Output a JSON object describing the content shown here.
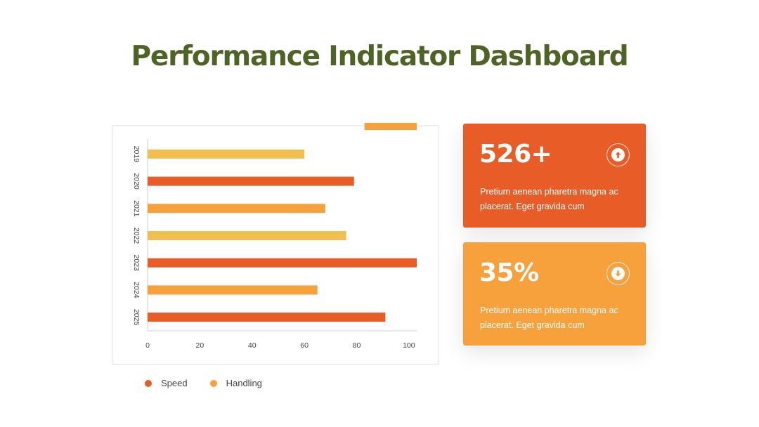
{
  "title": "Performance Indicator Dashboard",
  "colors": {
    "title": "#4e6427",
    "speed": "#e85d27",
    "handling": "#f7a13d",
    "yellow": "#f0bf4f"
  },
  "chart_data": {
    "type": "bar",
    "orientation": "horizontal",
    "categories": [
      "2019",
      "2020",
      "2021",
      "2022",
      "2023",
      "2024",
      "2025"
    ],
    "values": [
      60,
      79,
      68,
      76,
      103,
      65,
      91
    ],
    "bar_colors": [
      "#f0bf4f",
      "#e85d27",
      "#f7a13d",
      "#f0bf4f",
      "#e85d27",
      "#f7a13d",
      "#e85d27"
    ],
    "extra_bar": {
      "start": 83,
      "end": 103,
      "color": "#f7a13d"
    },
    "xlim": [
      0,
      103
    ],
    "xticks": [
      0,
      20,
      40,
      60,
      80,
      100
    ],
    "grid": false,
    "legend": {
      "placement": "bottom-left",
      "entries": [
        {
          "label": "Speed",
          "color": "#e85d27"
        },
        {
          "label": "Handling",
          "color": "#f7a13d"
        }
      ]
    }
  },
  "cards": [
    {
      "value": "526+",
      "icon": "arrow-up-icon",
      "text": "Pretium aenean pharetra magna ac placerat. Eget gravida cum",
      "color": "#e85d27"
    },
    {
      "value": "35%",
      "icon": "arrow-down-icon",
      "text": "Pretium aenean pharetra magna ac placerat. Eget gravida cum",
      "color": "#f7a13d"
    }
  ]
}
